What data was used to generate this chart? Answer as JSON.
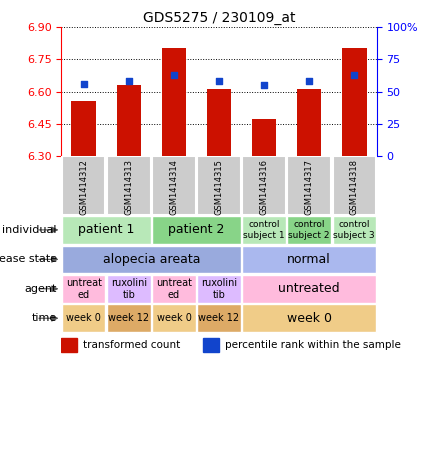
{
  "title": "GDS5275 / 230109_at",
  "samples": [
    "GSM1414312",
    "GSM1414313",
    "GSM1414314",
    "GSM1414315",
    "GSM1414316",
    "GSM1414317",
    "GSM1414318"
  ],
  "bar_values": [
    6.555,
    6.63,
    6.805,
    6.615,
    6.475,
    6.615,
    6.805
  ],
  "bar_bottom": 6.3,
  "percentile_values": [
    56,
    58,
    63,
    58,
    55,
    58,
    63
  ],
  "ylim_left": [
    6.3,
    6.9
  ],
  "ylim_right": [
    0,
    100
  ],
  "yticks_left": [
    6.3,
    6.45,
    6.6,
    6.75,
    6.9
  ],
  "yticks_right": [
    0,
    25,
    50,
    75,
    100
  ],
  "bar_color": "#cc1100",
  "dot_color": "#1144cc",
  "annotation_rows": [
    {
      "label": "individual",
      "cells": [
        {
          "text": "patient 1",
          "span": 2,
          "color": "#b8e8b8",
          "fontsize": 9
        },
        {
          "text": "patient 2",
          "span": 2,
          "color": "#88d488",
          "fontsize": 9
        },
        {
          "text": "control\nsubject 1",
          "span": 1,
          "color": "#b8e8b8",
          "fontsize": 6.5
        },
        {
          "text": "control\nsubject 2",
          "span": 1,
          "color": "#88d488",
          "fontsize": 6.5
        },
        {
          "text": "control\nsubject 3",
          "span": 1,
          "color": "#b8e8b8",
          "fontsize": 6.5
        }
      ]
    },
    {
      "label": "disease state",
      "cells": [
        {
          "text": "alopecia areata",
          "span": 4,
          "color": "#99aadd",
          "fontsize": 9
        },
        {
          "text": "normal",
          "span": 3,
          "color": "#aab8ee",
          "fontsize": 9
        }
      ]
    },
    {
      "label": "agent",
      "cells": [
        {
          "text": "untreat\ned",
          "span": 1,
          "color": "#ffbbdd",
          "fontsize": 7
        },
        {
          "text": "ruxolini\ntib",
          "span": 1,
          "color": "#ddbbff",
          "fontsize": 7
        },
        {
          "text": "untreat\ned",
          "span": 1,
          "color": "#ffbbdd",
          "fontsize": 7
        },
        {
          "text": "ruxolini\ntib",
          "span": 1,
          "color": "#ddbbff",
          "fontsize": 7
        },
        {
          "text": "untreated",
          "span": 3,
          "color": "#ffbbdd",
          "fontsize": 9
        }
      ]
    },
    {
      "label": "time",
      "cells": [
        {
          "text": "week 0",
          "span": 1,
          "color": "#f0cc88",
          "fontsize": 7
        },
        {
          "text": "week 12",
          "span": 1,
          "color": "#ddaa66",
          "fontsize": 7
        },
        {
          "text": "week 0",
          "span": 1,
          "color": "#f0cc88",
          "fontsize": 7
        },
        {
          "text": "week 12",
          "span": 1,
          "color": "#ddaa66",
          "fontsize": 7
        },
        {
          "text": "week 0",
          "span": 3,
          "color": "#f0cc88",
          "fontsize": 9
        }
      ]
    }
  ],
  "legend_items": [
    {
      "color": "#cc1100",
      "label": "transformed count"
    },
    {
      "color": "#1144cc",
      "label": "percentile rank within the sample"
    }
  ],
  "gsm_bg": "#cccccc",
  "fig_width": 4.38,
  "fig_height": 4.53,
  "dpi": 100
}
